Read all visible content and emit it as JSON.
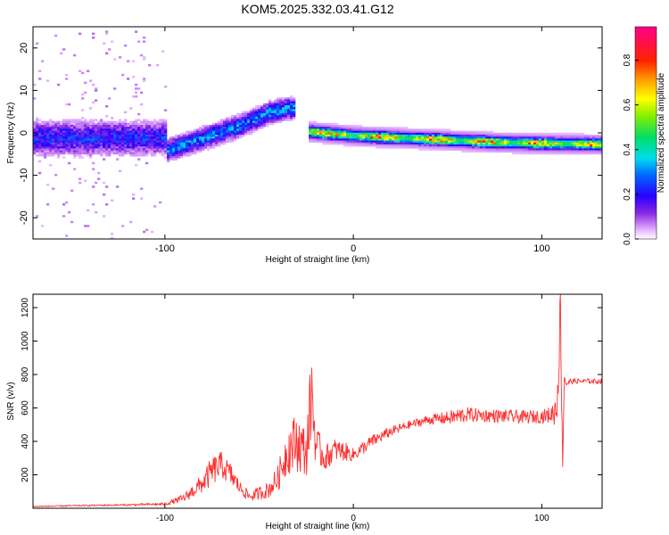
{
  "title": "KOM5.2025.332.03.41.G12",
  "chart_data": [
    {
      "type": "heatmap",
      "name": "spectrogram",
      "xlabel": "Height of straight line (km)",
      "ylabel": "Frequency (Hz)",
      "xlim": [
        -170,
        132
      ],
      "ylim": [
        -25,
        25
      ],
      "x_ticks": [
        -100,
        0,
        100
      ],
      "y_ticks": [
        -20,
        -10,
        0,
        10,
        20
      ],
      "colorbar": {
        "label": "Normalized spectral amplitude",
        "range": [
          0,
          0.95
        ],
        "ticks": [
          0.0,
          0.2,
          0.4,
          0.6,
          0.8
        ]
      },
      "features": [
        {
          "description": "noise band",
          "x_range": [
            -170,
            -100
          ],
          "freq_center": -1,
          "amplitude": 0.15
        },
        {
          "description": "rising trace",
          "points": [
            [
              -100,
              -4
            ],
            [
              -80,
              -1
            ],
            [
              -60,
              2
            ],
            [
              -45,
              5
            ],
            [
              -35,
              6
            ]
          ],
          "amplitude": 0.3
        },
        {
          "description": "main trace",
          "points": [
            [
              -25,
              0.5
            ],
            [
              0,
              -0.5
            ],
            [
              25,
              -1
            ],
            [
              50,
              -1.5
            ],
            [
              75,
              -2
            ],
            [
              100,
              -2.3
            ],
            [
              132,
              -2.5
            ]
          ],
          "amplitude": 0.8
        }
      ]
    },
    {
      "type": "line",
      "name": "snr",
      "xlabel": "Height of straight line (km)",
      "ylabel": "SNR (v/v)",
      "xlim": [
        -170,
        132
      ],
      "ylim": [
        0,
        1280
      ],
      "x_ticks": [
        -100,
        0,
        100
      ],
      "y_ticks": [
        200,
        400,
        600,
        800,
        1000,
        1200
      ],
      "color": "#ff3030",
      "series": [
        {
          "name": "SNR",
          "x": [
            -170,
            -150,
            -120,
            -100,
            -90,
            -80,
            -75,
            -70,
            -65,
            -60,
            -55,
            -45,
            -40,
            -35,
            -30,
            -25,
            -22,
            -20,
            -15,
            -10,
            -5,
            0,
            10,
            20,
            30,
            40,
            50,
            55,
            60,
            70,
            80,
            90,
            100,
            105,
            108,
            110,
            111,
            112,
            113,
            115,
            120,
            125,
            132
          ],
          "y": [
            10,
            15,
            20,
            25,
            60,
            150,
            220,
            260,
            200,
            120,
            70,
            110,
            180,
            350,
            400,
            330,
            700,
            380,
            300,
            350,
            340,
            320,
            400,
            460,
            500,
            530,
            540,
            550,
            560,
            555,
            550,
            545,
            550,
            560,
            600,
            1200,
            250,
            800,
            740,
            760,
            760,
            760,
            760
          ],
          "noise": [
            3,
            4,
            5,
            8,
            25,
            60,
            90,
            80,
            70,
            40,
            30,
            50,
            80,
            150,
            180,
            150,
            280,
            120,
            80,
            70,
            60,
            40,
            40,
            30,
            25,
            30,
            40,
            50,
            45,
            40,
            40,
            40,
            40,
            50,
            120,
            200,
            80,
            60,
            20,
            15,
            15,
            15,
            15
          ]
        }
      ]
    }
  ]
}
